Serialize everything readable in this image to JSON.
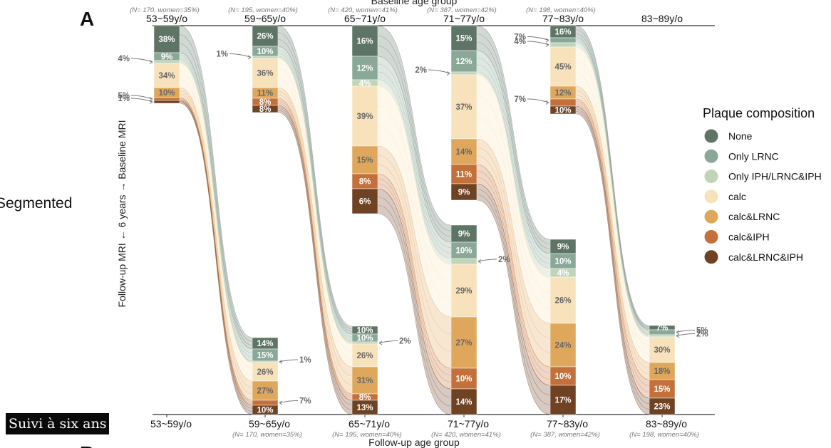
{
  "panel_letter": "A",
  "panel_letter_next": "B",
  "row_label": "Segmented",
  "caption_overlay": "Suivi à six ans",
  "chart_data": {
    "type": "alluvial",
    "title": "",
    "top_axis_label": "Baseline age group",
    "bottom_axis_label": "Follow-up age group",
    "ylabel": "Follow-up MRI  ←  6 years  →  Baseline MRI",
    "legend": {
      "title": "Plaque composition",
      "position": "right",
      "entries": [
        "None",
        "Only LRNC",
        "Only IPH/LRNC&IPH",
        "calc",
        "calc&LRNC",
        "calc&IPH",
        "calc&LRNC&IPH"
      ]
    },
    "colors": {
      "None": "#5e7464",
      "Only LRNC": "#8aa898",
      "Only IPH/LRNC&IPH": "#c2d4b8",
      "calc": "#f8e2bb",
      "calc&LRNC": "#dfa75c",
      "calc&IPH": "#c4703a",
      "calc&LRNC&IPH": "#6f4223"
    },
    "baseline": [
      {
        "group": "53~59y/o",
        "n_label": "(N= 170, women=35%)",
        "labels": [
          "38%",
          "9%",
          "4%",
          "34%",
          "10%",
          "5%",
          "1%"
        ]
      },
      {
        "group": "59~65y/o",
        "n_label": "(N= 195, women=40%)",
        "labels": [
          "26%",
          "10%",
          "1%",
          "36%",
          "11%",
          "8%",
          "8%"
        ]
      },
      {
        "group": "65~71y/o",
        "n_label": "(N= 420, women=41%)",
        "labels": [
          "16%",
          "12%",
          "4%",
          "39%",
          "15%",
          "8%",
          "6%"
        ]
      },
      {
        "group": "71~77y/o",
        "n_label": "(N= 387, women=42%)",
        "labels": [
          "15%",
          "12%",
          "2%",
          "37%",
          "14%",
          "11%",
          "9%"
        ]
      },
      {
        "group": "77~83y/o",
        "n_label": "(N= 198, women=40%)",
        "labels": [
          "16%",
          "7%",
          "4%",
          "45%",
          "12%",
          "7%",
          "10%"
        ]
      },
      {
        "group": "83~89y/o",
        "n_label": "",
        "labels": []
      }
    ],
    "followup": [
      {
        "group": "53~59y/o",
        "n_label": "",
        "labels": []
      },
      {
        "group": "59~65y/o",
        "n_label": "(N= 170, women=35%)",
        "labels": [
          "14%",
          "15%",
          "1%",
          "26%",
          "27%",
          "7%",
          "10%"
        ]
      },
      {
        "group": "65~71y/o",
        "n_label": "(N= 195, women=40%)",
        "labels": [
          "10%",
          "10%",
          "2%",
          "26%",
          "31%",
          "8%",
          "13%"
        ]
      },
      {
        "group": "71~77y/o",
        "n_label": "(N= 420, women=41%)",
        "labels": [
          "9%",
          "10%",
          "2%",
          "29%",
          "27%",
          "10%",
          "14%"
        ]
      },
      {
        "group": "77~83y/o",
        "n_label": "(N= 387, women=42%)",
        "labels": [
          "9%",
          "10%",
          "4%",
          "26%",
          "24%",
          "10%",
          "17%"
        ]
      },
      {
        "group": "83~89y/o",
        "n_label": "(N= 198, women=40%)",
        "labels": [
          "7%",
          "5%",
          "2%",
          "30%",
          "18%",
          "15%",
          "23%"
        ]
      }
    ]
  }
}
